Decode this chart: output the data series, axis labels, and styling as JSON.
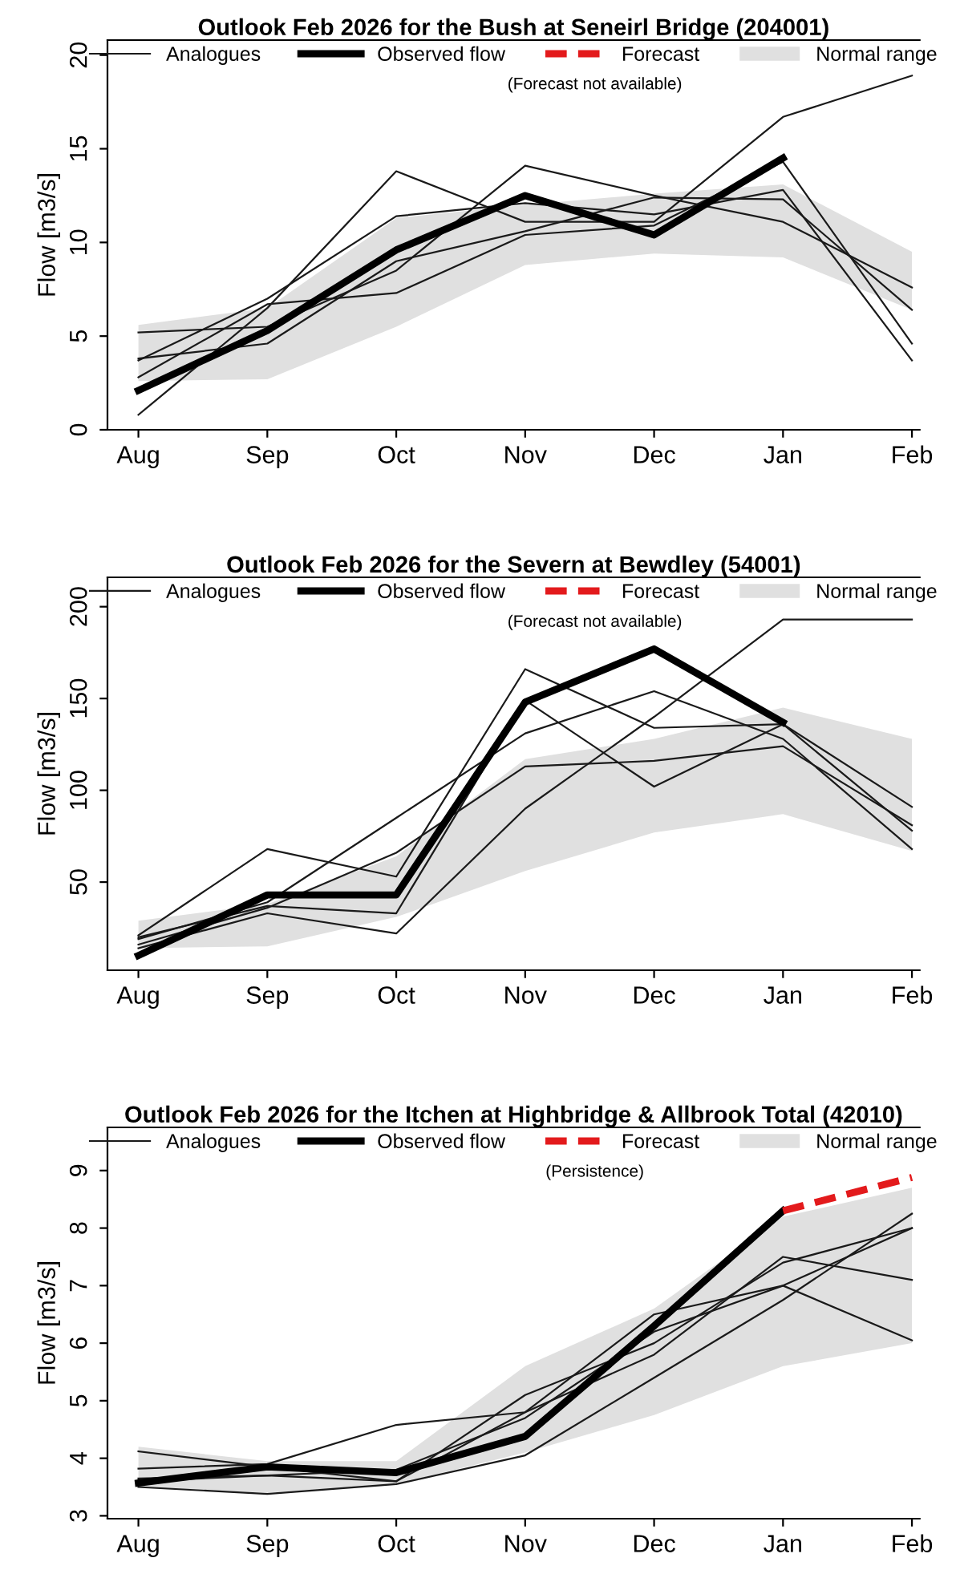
{
  "chart_data": [
    {
      "type": "line",
      "title": "Outlook Feb 2026 for the Bush at Seneirl Bridge (204001)",
      "ylabel": "Flow [m3/s]",
      "categories": [
        "Aug",
        "Sep",
        "Oct",
        "Nov",
        "Dec",
        "Jan",
        "Feb"
      ],
      "ylim": [
        0,
        20.8
      ],
      "yticks": [
        0,
        5,
        10,
        15,
        20
      ],
      "grid": false,
      "legend": "top",
      "line_style": "solid",
      "marker": "none",
      "annotations": [
        "(Forecast not available)"
      ],
      "series": [
        {
          "name": "Analogues",
          "color": "#1a1a1a",
          "values": [
            0.8,
            6.5,
            13.8,
            11.1,
            11.1,
            16.7,
            18.9
          ]
        },
        {
          "color": "#1a1a1a",
          "values": [
            5.2,
            5.5,
            8.5,
            14.1,
            12.5,
            11.1,
            7.6
          ]
        },
        {
          "color": "#1a1a1a",
          "values": [
            3.7,
            7.0,
            11.4,
            12.1,
            11.5,
            12.8,
            3.7
          ]
        },
        {
          "color": "#1a1a1a",
          "values": [
            2.8,
            6.7,
            7.3,
            10.4,
            10.9,
            14.3,
            4.6
          ]
        },
        {
          "color": "#1a1a1a",
          "values": [
            3.8,
            4.6,
            9.0,
            10.6,
            12.4,
            12.3,
            6.4
          ]
        },
        {
          "name": "Observed flow",
          "color": "#000000",
          "values": [
            2.1,
            5.3,
            9.6,
            12.5,
            10.4,
            14.5,
            null
          ]
        },
        {
          "name": "Forecast",
          "color": "#e31a1c",
          "line_style": "dashed",
          "values": [
            null,
            null,
            null,
            null,
            null,
            null,
            null
          ]
        },
        {
          "name": "Normal range",
          "type": "area",
          "color": "#e0e0e0",
          "values": [
            null,
            null,
            null,
            null,
            null,
            null,
            null
          ],
          "upper": [
            5.6,
            6.5,
            11.3,
            12.0,
            12.6,
            13.1,
            9.5
          ],
          "lower": [
            2.6,
            2.7,
            5.5,
            8.8,
            9.4,
            9.2,
            6.4
          ]
        }
      ]
    },
    {
      "type": "line",
      "title": "Outlook Feb 2026 for the Severn at Bewdley (54001)",
      "ylabel": "Flow [m3/s]",
      "categories": [
        "Aug",
        "Sep",
        "Oct",
        "Nov",
        "Dec",
        "Jan",
        "Feb"
      ],
      "ylim": [
        2,
        216
      ],
      "yticks": [
        50,
        100,
        150,
        200
      ],
      "grid": false,
      "legend": "top",
      "line_style": "solid",
      "marker": "none",
      "annotations": [
        "(Forecast not available)"
      ],
      "series": [
        {
          "name": "Analogues",
          "color": "#1a1a1a",
          "values": [
            14,
            33,
            22,
            90,
            140,
            193,
            193
          ]
        },
        {
          "color": "#1a1a1a",
          "values": [
            21,
            68,
            53,
            166,
            134,
            136,
            78
          ]
        },
        {
          "color": "#1a1a1a",
          "values": [
            19,
            39,
            85,
            131,
            154,
            128,
            68
          ]
        },
        {
          "color": "#1a1a1a",
          "values": [
            20,
            37,
            33,
            149,
            102,
            136,
            91
          ]
        },
        {
          "color": "#1a1a1a",
          "values": [
            16,
            36,
            66,
            113,
            116,
            124,
            81
          ]
        },
        {
          "name": "Observed flow",
          "color": "#000000",
          "values": [
            10,
            43,
            43,
            148,
            177,
            137,
            null
          ]
        },
        {
          "name": "Forecast",
          "color": "#e31a1c",
          "line_style": "dashed",
          "values": [
            null,
            null,
            null,
            null,
            null,
            null,
            null
          ]
        },
        {
          "name": "Normal range",
          "type": "area",
          "color": "#e0e0e0",
          "values": [
            null,
            null,
            null,
            null,
            null,
            null,
            null
          ],
          "upper": [
            29,
            38,
            64,
            117,
            128,
            145,
            128
          ],
          "lower": [
            14,
            15,
            31,
            56,
            77,
            87,
            67
          ]
        }
      ]
    },
    {
      "type": "line",
      "title": "Outlook Feb 2026 for the Itchen at Highbridge & Allbrook Total (42010)",
      "ylabel": "Flow [m3/s]",
      "categories": [
        "Aug",
        "Sep",
        "Oct",
        "Nov",
        "Dec",
        "Jan",
        "Feb"
      ],
      "ylim": [
        2.95,
        9.75
      ],
      "yticks": [
        3,
        4,
        5,
        6,
        7,
        8,
        9
      ],
      "grid": false,
      "legend": "top",
      "line_style": "solid",
      "marker": "none",
      "annotations": [
        "(Persistence)"
      ],
      "series": [
        {
          "name": "Analogues",
          "color": "#1a1a1a",
          "values": [
            4.12,
            3.85,
            3.6,
            4.8,
            6.5,
            7.0,
            6.05
          ]
        },
        {
          "color": "#1a1a1a",
          "values": [
            3.82,
            3.9,
            4.58,
            4.8,
            5.8,
            7.5,
            7.1
          ]
        },
        {
          "color": "#1a1a1a",
          "values": [
            3.5,
            3.38,
            3.55,
            4.05,
            5.4,
            6.75,
            8.25
          ]
        },
        {
          "color": "#1a1a1a",
          "values": [
            3.65,
            3.7,
            3.6,
            5.1,
            6.0,
            7.4,
            8.0
          ]
        },
        {
          "color": "#1a1a1a",
          "values": [
            3.6,
            3.7,
            3.8,
            4.7,
            6.2,
            7.0,
            8.0
          ]
        },
        {
          "name": "Observed flow",
          "color": "#000000",
          "values": [
            3.57,
            3.85,
            3.75,
            4.38,
            6.3,
            8.3,
            null
          ]
        },
        {
          "name": "Forecast",
          "color": "#e31a1c",
          "line_style": "dashed",
          "values": [
            null,
            null,
            null,
            null,
            null,
            8.3,
            8.88
          ]
        },
        {
          "name": "Normal range",
          "type": "area",
          "color": "#e0e0e0",
          "values": [
            null,
            null,
            null,
            null,
            null,
            null,
            null
          ],
          "upper": [
            4.2,
            3.95,
            3.95,
            5.6,
            6.6,
            8.2,
            8.7
          ],
          "lower": [
            3.5,
            3.4,
            3.55,
            4.1,
            4.75,
            5.6,
            6.0
          ]
        }
      ]
    }
  ]
}
